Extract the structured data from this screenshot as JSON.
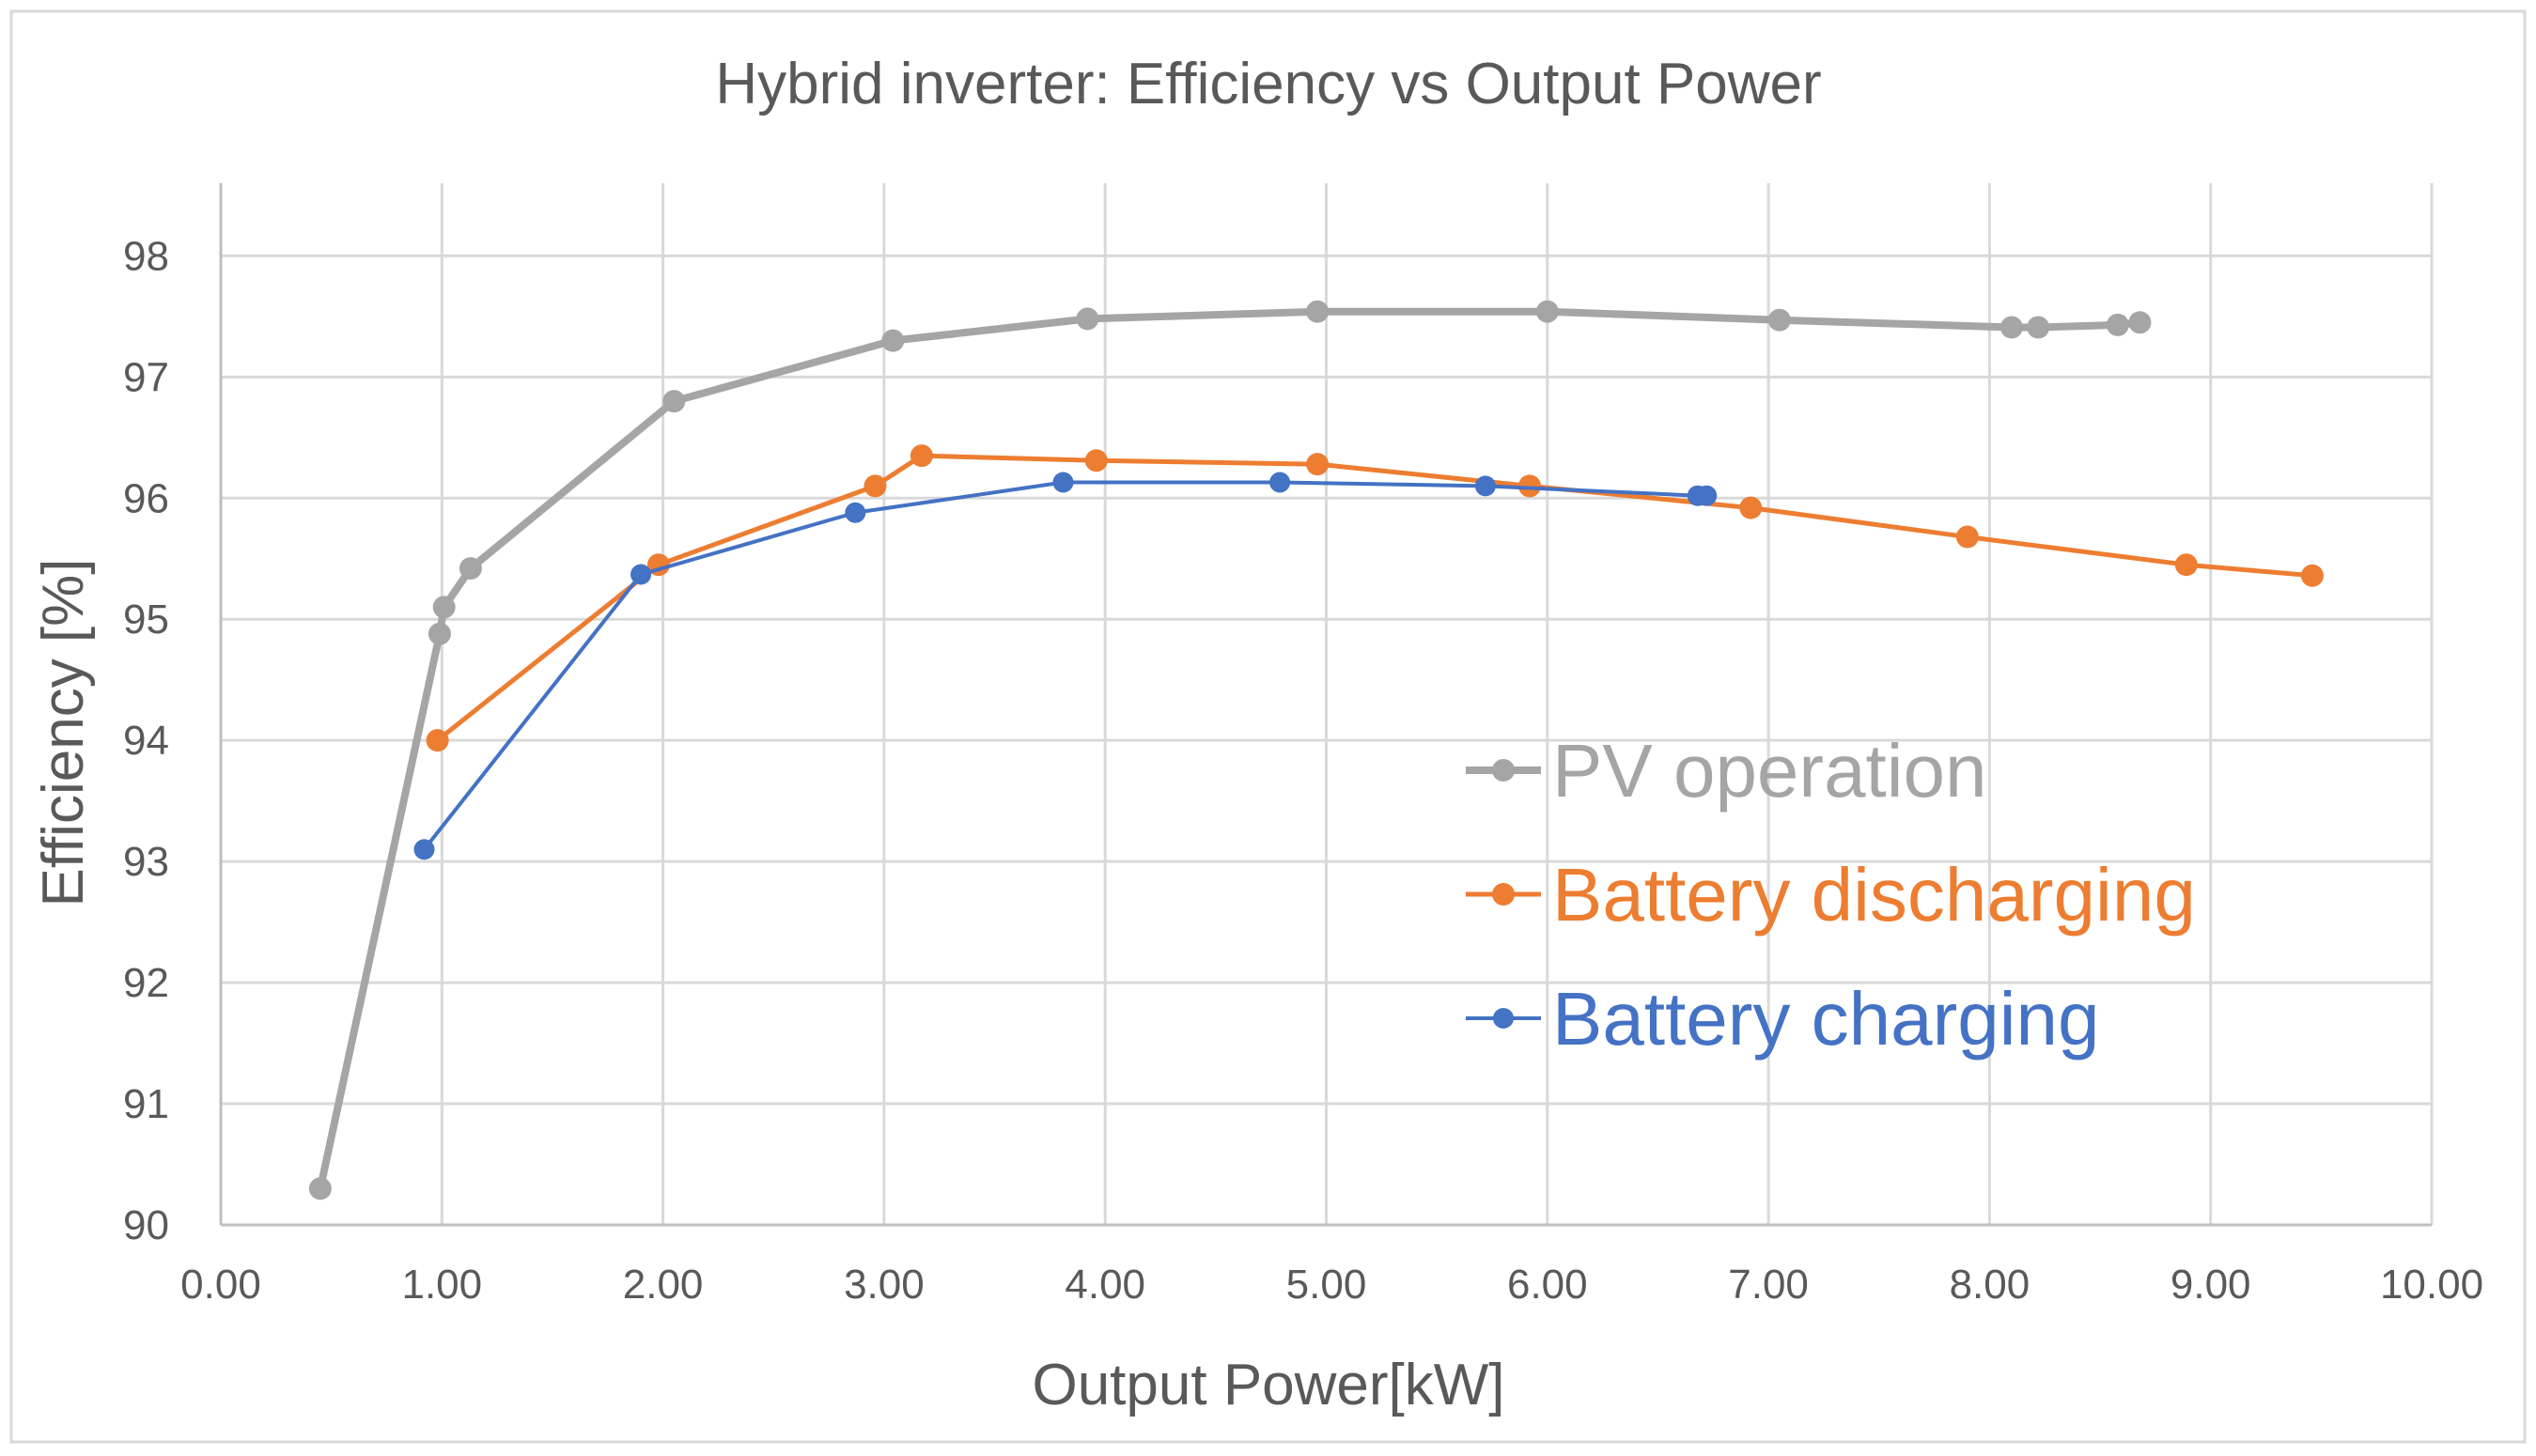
{
  "chart_data": {
    "type": "line",
    "title": "Hybrid inverter: Efficiency vs Output Power",
    "xlabel": "Output Power[kW]",
    "ylabel": "Efficiency [%]",
    "xlim": [
      0,
      10
    ],
    "ylim": [
      90,
      98.6
    ],
    "x_ticks": [
      "0.00",
      "1.00",
      "2.00",
      "3.00",
      "4.00",
      "5.00",
      "6.00",
      "7.00",
      "8.00",
      "9.00",
      "10.00"
    ],
    "y_ticks": [
      "90",
      "91",
      "92",
      "93",
      "94",
      "95",
      "96",
      "97",
      "98"
    ],
    "grid": true,
    "legend_position": "center-right",
    "series": [
      {
        "name": "PV operation",
        "color": "#a5a5a5",
        "x": [
          0.45,
          0.99,
          1.01,
          1.13,
          2.05,
          3.04,
          3.92,
          4.96,
          6.0,
          7.05,
          8.1,
          8.22,
          8.58,
          8.68
        ],
        "y": [
          90.3,
          94.88,
          95.1,
          95.42,
          96.8,
          97.3,
          97.48,
          97.54,
          97.54,
          97.47,
          97.41,
          97.41,
          97.43,
          97.45
        ]
      },
      {
        "name": "Battery discharging",
        "color": "#ed7d31",
        "x": [
          0.98,
          1.98,
          2.96,
          3.17,
          3.96,
          4.96,
          5.92,
          6.92,
          7.9,
          8.89,
          9.46
        ],
        "y": [
          94.0,
          95.45,
          96.1,
          96.35,
          96.31,
          96.28,
          96.1,
          95.92,
          95.68,
          95.45,
          95.36
        ]
      },
      {
        "name": "Battery charging",
        "color": "#4472c4",
        "x": [
          0.92,
          1.9,
          2.87,
          3.81,
          4.79,
          5.72,
          6.68,
          6.72
        ],
        "y": [
          93.1,
          95.37,
          95.88,
          96.13,
          96.13,
          96.1,
          96.02,
          96.02
        ]
      }
    ]
  }
}
